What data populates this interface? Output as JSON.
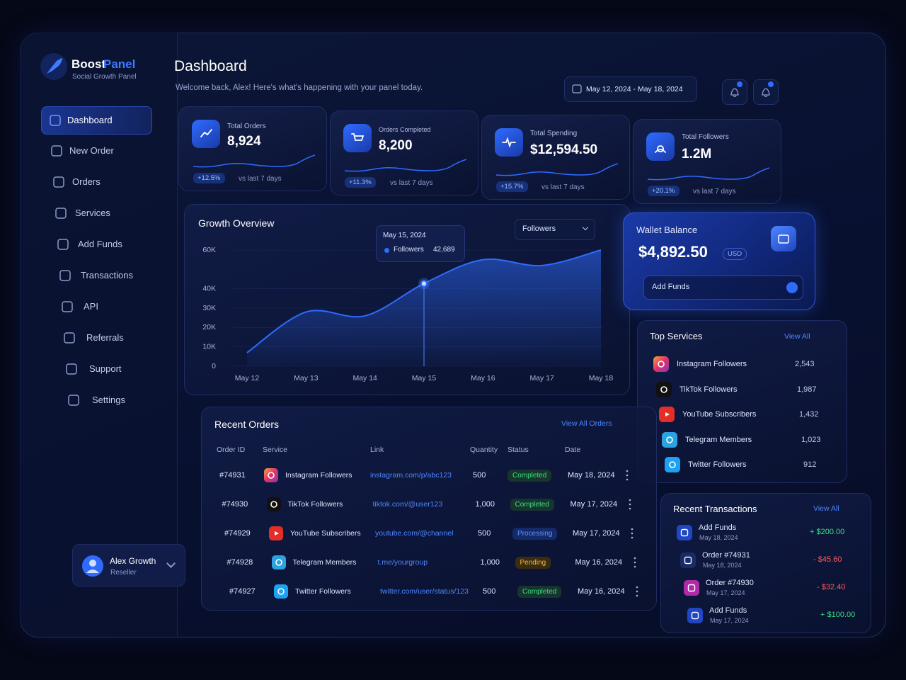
{
  "brand": {
    "name_main": "Boost",
    "name_accent": "Panel",
    "tagline": "Social Growth Panel"
  },
  "nav": [
    "Dashboard",
    "New Order",
    "Orders",
    "Services",
    "Add Funds",
    "Transactions",
    "API",
    "Referrals",
    "Support",
    "Settings"
  ],
  "user": {
    "name": "Alex Growth",
    "role": "Reseller"
  },
  "header": {
    "title": "Dashboard",
    "subtitle": "Welcome back, Alex! Here's what's happening with your panel today.",
    "date_range": "May 12, 2024 - May 18, 2024"
  },
  "stats": [
    {
      "label": "Total Orders",
      "value": "8,924",
      "change": "+12.5%",
      "period": "vs last 7 days"
    },
    {
      "label": "Orders Completed",
      "value": "8,200",
      "change": "+11.3%",
      "period": "vs last 7 days"
    },
    {
      "label": "Total Spending",
      "value": "$12,594.50",
      "change": "+15.7%",
      "period": "vs last 7 days"
    },
    {
      "label": "Total Followers",
      "value": "1.2M",
      "change": "+20.1%",
      "period": "vs last 7 days"
    }
  ],
  "chart_data": {
    "type": "area",
    "title": "Growth Overview",
    "selector": "Followers",
    "categories": [
      "May 12",
      "May 13",
      "May 14",
      "May 15",
      "May 16",
      "May 17",
      "May 18"
    ],
    "series": [
      {
        "name": "Followers",
        "color": "#2f6bff",
        "values": [
          7000,
          28000,
          26000,
          42689,
          55000,
          52000,
          60000
        ],
        "value_labels": [
          null,
          null,
          null,
          "42,689",
          null,
          null,
          null
        ]
      }
    ],
    "tooltip_date": "May 15, 2024",
    "tooltip_index": 3,
    "ylim": [
      0,
      60000
    ],
    "yticks": [
      0,
      {
        "value": 10000,
        "label": "10K"
      },
      {
        "value": 20000,
        "label": "20K"
      },
      {
        "value": 30000,
        "label": "30K"
      },
      {
        "value": 40000,
        "label": "40K"
      },
      {
        "value": 60000,
        "label": "60K"
      }
    ],
    "grid": true
  },
  "wallet": {
    "title": "Wallet Balance",
    "amount": "$4,892.50",
    "currency": "USD",
    "action": "Add Funds"
  },
  "top_services": {
    "title": "Top Services",
    "action": "View All",
    "items": [
      {
        "name": "Instagram Followers",
        "count": "2,543"
      },
      {
        "name": "TikTok Followers",
        "count": "1,987"
      },
      {
        "name": "YouTube Subscribers",
        "count": "1,432"
      },
      {
        "name": "Telegram Members",
        "count": "1,023"
      },
      {
        "name": "Twitter Followers",
        "count": "912"
      }
    ]
  },
  "recent_orders": {
    "title": "Recent Orders",
    "action": "View All Orders",
    "columns": [
      "Order ID",
      "Service",
      "Link",
      "Quantity",
      "Status",
      "Date"
    ],
    "rows": [
      [
        "#74931",
        "Instagram Followers",
        "instagram.com/p/abc123",
        "500",
        "Completed",
        "May 18, 2024"
      ],
      [
        "#74930",
        "TikTok Followers",
        "tiktok.com/@user123",
        "1,000",
        "Completed",
        "May 17, 2024"
      ],
      [
        "#74929",
        "YouTube Subscribers",
        "youtube.com/@channel",
        "500",
        "Processing",
        "May 17, 2024"
      ],
      [
        "#74928",
        "Telegram Members",
        "t.me/yourgroup",
        "1,000",
        "Pending",
        "May 16, 2024"
      ],
      [
        "#74927",
        "Twitter Followers",
        "twitter.com/user/status/123",
        "500",
        "Completed",
        "May 16, 2024"
      ]
    ]
  },
  "transactions": {
    "title": "Recent Transactions",
    "action": "View All",
    "items": [
      {
        "title": "Add Funds",
        "date": "May 18, 2024",
        "amount": "+ $200.00"
      },
      {
        "title": "Order #74931",
        "date": "May 18, 2024",
        "amount": "- $45.60"
      },
      {
        "title": "Order #74930",
        "date": "May 17, 2024",
        "amount": "- $32.40"
      },
      {
        "title": "Add Funds",
        "date": "May 17, 2024",
        "amount": "+ $100.00"
      }
    ]
  }
}
